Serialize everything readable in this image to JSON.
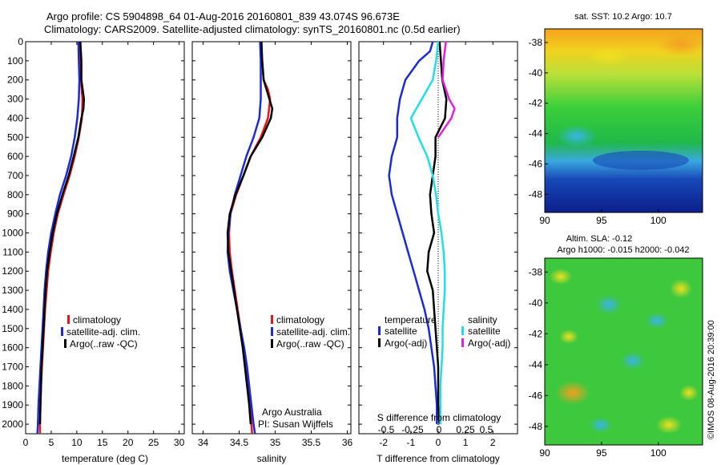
{
  "header": {
    "line1": "Argo profile: CS 5904898_64 01-Aug-2016 20160801_839 43.074S 96.673E",
    "line2": "Climatology: CARS2009. Satellite-adjusted climatology: synTS_20160801.nc (0.5d earlier)"
  },
  "colors": {
    "climatology": "#e8141b",
    "satellite": "#1a2ad8",
    "argo": "#000000",
    "satellite_salinity": "#22dde8",
    "argo_salinity": "#e020e0"
  },
  "footer": {
    "imos_stamp": "©IMOS 08-Aug-2016 20:39:00",
    "argo_australia": "Argo Australia",
    "pi": "PI: Susan Wijffels"
  },
  "chart_data": [
    {
      "type": "line",
      "xlabel": "temperature (deg C)",
      "ylabel": "",
      "xlim": [
        0,
        31
      ],
      "ylim": [
        2050,
        0
      ],
      "xticks": [
        "0",
        "5",
        "10",
        "15",
        "20",
        "25",
        "30"
      ],
      "yticks": [
        "0",
        "100",
        "200",
        "300",
        "400",
        "500",
        "600",
        "700",
        "800",
        "900",
        "1000",
        "1100",
        "1200",
        "1300",
        "1400",
        "1500",
        "1600",
        "1700",
        "1800",
        "1900",
        "2000"
      ],
      "legend": [
        "climatology",
        "satellite-adj. clim.",
        "Argo(..raw -QC)"
      ],
      "series": [
        {
          "name": "climatology",
          "color_key": "climatology",
          "points": [
            [
              10.6,
              0
            ],
            [
              10.7,
              100
            ],
            [
              10.8,
              200
            ],
            [
              11.1,
              300
            ],
            [
              11.0,
              400
            ],
            [
              10.4,
              500
            ],
            [
              9.6,
              600
            ],
            [
              8.6,
              700
            ],
            [
              7.4,
              800
            ],
            [
              6.3,
              900
            ],
            [
              5.5,
              1000
            ],
            [
              4.9,
              1100
            ],
            [
              4.4,
              1200
            ],
            [
              4.1,
              1300
            ],
            [
              3.8,
              1400
            ],
            [
              3.6,
              1500
            ],
            [
              3.4,
              1600
            ],
            [
              3.2,
              1700
            ],
            [
              3.0,
              1800
            ],
            [
              2.9,
              1900
            ],
            [
              2.8,
              2000
            ],
            [
              2.8,
              2050
            ]
          ]
        },
        {
          "name": "satellite-adj. clim.",
          "color_key": "satellite",
          "points": [
            [
              10.3,
              0
            ],
            [
              10.4,
              100
            ],
            [
              10.5,
              200
            ],
            [
              10.4,
              300
            ],
            [
              10.1,
              400
            ],
            [
              9.6,
              500
            ],
            [
              8.9,
              600
            ],
            [
              7.9,
              700
            ],
            [
              6.7,
              800
            ],
            [
              5.8,
              900
            ],
            [
              5.0,
              1000
            ],
            [
              4.4,
              1100
            ],
            [
              4.0,
              1200
            ],
            [
              3.7,
              1300
            ],
            [
              3.5,
              1400
            ],
            [
              3.3,
              1500
            ],
            [
              3.1,
              1600
            ],
            [
              2.9,
              1700
            ],
            [
              2.7,
              1800
            ],
            [
              2.5,
              1900
            ],
            [
              2.4,
              2000
            ],
            [
              2.3,
              2050
            ]
          ]
        },
        {
          "name": "Argo(..raw -QC)",
          "color_key": "argo",
          "points": [
            [
              10.7,
              0
            ],
            [
              10.9,
              100
            ],
            [
              10.9,
              200
            ],
            [
              11.4,
              300
            ],
            [
              11.3,
              350
            ],
            [
              10.9,
              400
            ],
            [
              10.3,
              500
            ],
            [
              9.4,
              600
            ],
            [
              8.4,
              700
            ],
            [
              7.2,
              800
            ],
            [
              6.1,
              900
            ],
            [
              5.3,
              1000
            ],
            [
              4.7,
              1100
            ],
            [
              4.2,
              1200
            ],
            [
              3.9,
              1300
            ],
            [
              3.7,
              1400
            ],
            [
              3.5,
              1500
            ],
            [
              3.3,
              1600
            ],
            [
              3.1,
              1700
            ],
            [
              3.0,
              1800
            ],
            [
              2.9,
              1900
            ],
            [
              2.8,
              2000
            ]
          ]
        }
      ]
    },
    {
      "type": "line",
      "xlabel": "salinity",
      "ylabel": "",
      "xlim": [
        33.85,
        36.05
      ],
      "ylim": [
        2050,
        0
      ],
      "xticks": [
        "34",
        "34.5",
        "35",
        "35.5",
        "36"
      ],
      "legend": [
        "climatology",
        "satellite-adj. clim.",
        "Argo(..raw -QC)"
      ],
      "series": [
        {
          "name": "climatology",
          "color_key": "climatology",
          "points": [
            [
              34.8,
              0
            ],
            [
              34.82,
              100
            ],
            [
              34.84,
              200
            ],
            [
              34.9,
              250
            ],
            [
              34.93,
              300
            ],
            [
              34.9,
              400
            ],
            [
              34.8,
              500
            ],
            [
              34.66,
              600
            ],
            [
              34.56,
              700
            ],
            [
              34.46,
              800
            ],
            [
              34.38,
              900
            ],
            [
              34.36,
              1000
            ],
            [
              34.37,
              1100
            ],
            [
              34.4,
              1200
            ],
            [
              34.44,
              1300
            ],
            [
              34.48,
              1400
            ],
            [
              34.52,
              1500
            ],
            [
              34.56,
              1600
            ],
            [
              34.59,
              1700
            ],
            [
              34.62,
              1800
            ],
            [
              34.65,
              1900
            ],
            [
              34.67,
              2000
            ],
            [
              34.68,
              2050
            ]
          ]
        },
        {
          "name": "satellite-adj. clim.",
          "color_key": "satellite",
          "points": [
            [
              34.79,
              0
            ],
            [
              34.8,
              100
            ],
            [
              34.8,
              200
            ],
            [
              34.8,
              300
            ],
            [
              34.78,
              400
            ],
            [
              34.7,
              500
            ],
            [
              34.6,
              600
            ],
            [
              34.52,
              700
            ],
            [
              34.44,
              800
            ],
            [
              34.38,
              900
            ],
            [
              34.35,
              1000
            ],
            [
              34.34,
              1100
            ],
            [
              34.37,
              1200
            ],
            [
              34.42,
              1300
            ],
            [
              34.47,
              1400
            ],
            [
              34.52,
              1500
            ],
            [
              34.57,
              1600
            ],
            [
              34.61,
              1700
            ],
            [
              34.64,
              1800
            ],
            [
              34.67,
              1900
            ],
            [
              34.7,
              2000
            ],
            [
              34.72,
              2050
            ]
          ]
        },
        {
          "name": "Argo(..raw -QC)",
          "color_key": "argo",
          "points": [
            [
              34.81,
              0
            ],
            [
              34.82,
              100
            ],
            [
              34.84,
              200
            ],
            [
              34.92,
              300
            ],
            [
              34.96,
              350
            ],
            [
              34.94,
              400
            ],
            [
              34.82,
              500
            ],
            [
              34.66,
              600
            ],
            [
              34.56,
              700
            ],
            [
              34.45,
              800
            ],
            [
              34.37,
              900
            ],
            [
              34.34,
              1000
            ],
            [
              34.35,
              1100
            ],
            [
              34.39,
              1200
            ],
            [
              34.43,
              1300
            ],
            [
              34.47,
              1400
            ],
            [
              34.51,
              1500
            ],
            [
              34.55,
              1600
            ],
            [
              34.58,
              1700
            ],
            [
              34.61,
              1800
            ],
            [
              34.64,
              1900
            ],
            [
              34.66,
              2000
            ]
          ]
        }
      ]
    },
    {
      "type": "line",
      "xlabel": "T difference from climatology",
      "xlabel_top": "S difference from climatology",
      "xlim": [
        -2.9,
        2.9
      ],
      "ylim": [
        2050,
        0
      ],
      "xticks": [
        "-2",
        "-1",
        "0",
        "1",
        "2"
      ],
      "xticks_top": [
        "-0.5",
        "-0.25",
        "0",
        "0.25",
        "0.5"
      ],
      "legend_temperature_title": "temperature",
      "legend_salinity_title": "salinity",
      "legend": [
        "satellite",
        "Argo(-adj)",
        "satellite",
        "Argo(-adj)"
      ],
      "series": [
        {
          "name": "satellite",
          "group": "temperature",
          "color_key": "satellite",
          "points": [
            [
              -0.2,
              0
            ],
            [
              -0.3,
              50
            ],
            [
              -0.7,
              100
            ],
            [
              -1.2,
              200
            ],
            [
              -1.4,
              300
            ],
            [
              -1.5,
              400
            ],
            [
              -1.5,
              500
            ],
            [
              -1.7,
              600
            ],
            [
              -1.8,
              700
            ],
            [
              -1.7,
              800
            ],
            [
              -1.5,
              900
            ],
            [
              -1.3,
              1000
            ],
            [
              -1.1,
              1100
            ],
            [
              -0.9,
              1200
            ],
            [
              -0.7,
              1300
            ],
            [
              -0.5,
              1400
            ],
            [
              -0.35,
              1500
            ],
            [
              -0.25,
              1600
            ],
            [
              -0.15,
              1700
            ],
            [
              -0.1,
              1800
            ],
            [
              -0.05,
              1900
            ],
            [
              -0.05,
              2000
            ]
          ]
        },
        {
          "name": "Argo(-adj)",
          "group": "temperature",
          "color_key": "argo",
          "points": [
            [
              0.05,
              0
            ],
            [
              0.1,
              100
            ],
            [
              0.15,
              200
            ],
            [
              0.3,
              300
            ],
            [
              0.25,
              400
            ],
            [
              -0.1,
              500
            ],
            [
              -0.1,
              600
            ],
            [
              -0.2,
              700
            ],
            [
              -0.3,
              800
            ],
            [
              -0.25,
              900
            ],
            [
              -0.15,
              1000
            ],
            [
              -0.35,
              1100
            ],
            [
              -0.4,
              1200
            ],
            [
              -0.2,
              1300
            ],
            [
              -0.15,
              1400
            ],
            [
              -0.1,
              1500
            ],
            [
              -0.05,
              1600
            ],
            [
              0,
              1700
            ],
            [
              0,
              1800
            ],
            [
              0,
              1900
            ],
            [
              0.05,
              2000
            ]
          ]
        },
        {
          "name": "satellite",
          "group": "salinity",
          "color_key": "satellite_salinity",
          "points": [
            [
              0.0,
              0
            ],
            [
              -0.02,
              100
            ],
            [
              -0.05,
              200
            ],
            [
              -0.15,
              300
            ],
            [
              -0.25,
              400
            ],
            [
              -0.18,
              500
            ],
            [
              -0.1,
              600
            ],
            [
              -0.05,
              700
            ],
            [
              -0.02,
              800
            ],
            [
              0.0,
              900
            ],
            [
              0.03,
              1000
            ],
            [
              0.05,
              1100
            ],
            [
              0.06,
              1200
            ],
            [
              0.06,
              1300
            ],
            [
              0.05,
              1400
            ],
            [
              0.04,
              1500
            ],
            [
              0.04,
              1600
            ],
            [
              0.03,
              1700
            ],
            [
              0.02,
              1800
            ],
            [
              0.02,
              1900
            ],
            [
              0.02,
              2000
            ]
          ]
        },
        {
          "name": "Argo(-adj)",
          "group": "salinity",
          "color_key": "argo_salinity",
          "points": [
            [
              0.07,
              0
            ],
            [
              0.05,
              100
            ],
            [
              0.04,
              200
            ],
            [
              0.1,
              300
            ],
            [
              0.15,
              350
            ],
            [
              0.12,
              400
            ],
            [
              0.0,
              500
            ]
          ]
        }
      ]
    },
    {
      "type": "heatmap",
      "title": "sat. SST: 10.2  Argo: 10.7",
      "xticks": [
        "90",
        "95",
        "100"
      ],
      "yticks": [
        "-38",
        "-40",
        "-42",
        "-44",
        "-46",
        "-48"
      ]
    },
    {
      "type": "heatmap",
      "title_line1": "Altim. SLA: -0.12",
      "title_line2": "Argo h1000: -0.015 h2000: -0.042",
      "xticks": [
        "90",
        "95",
        "100"
      ],
      "yticks": [
        "-38",
        "-40",
        "-42",
        "-44",
        "-46",
        "-48"
      ]
    }
  ]
}
